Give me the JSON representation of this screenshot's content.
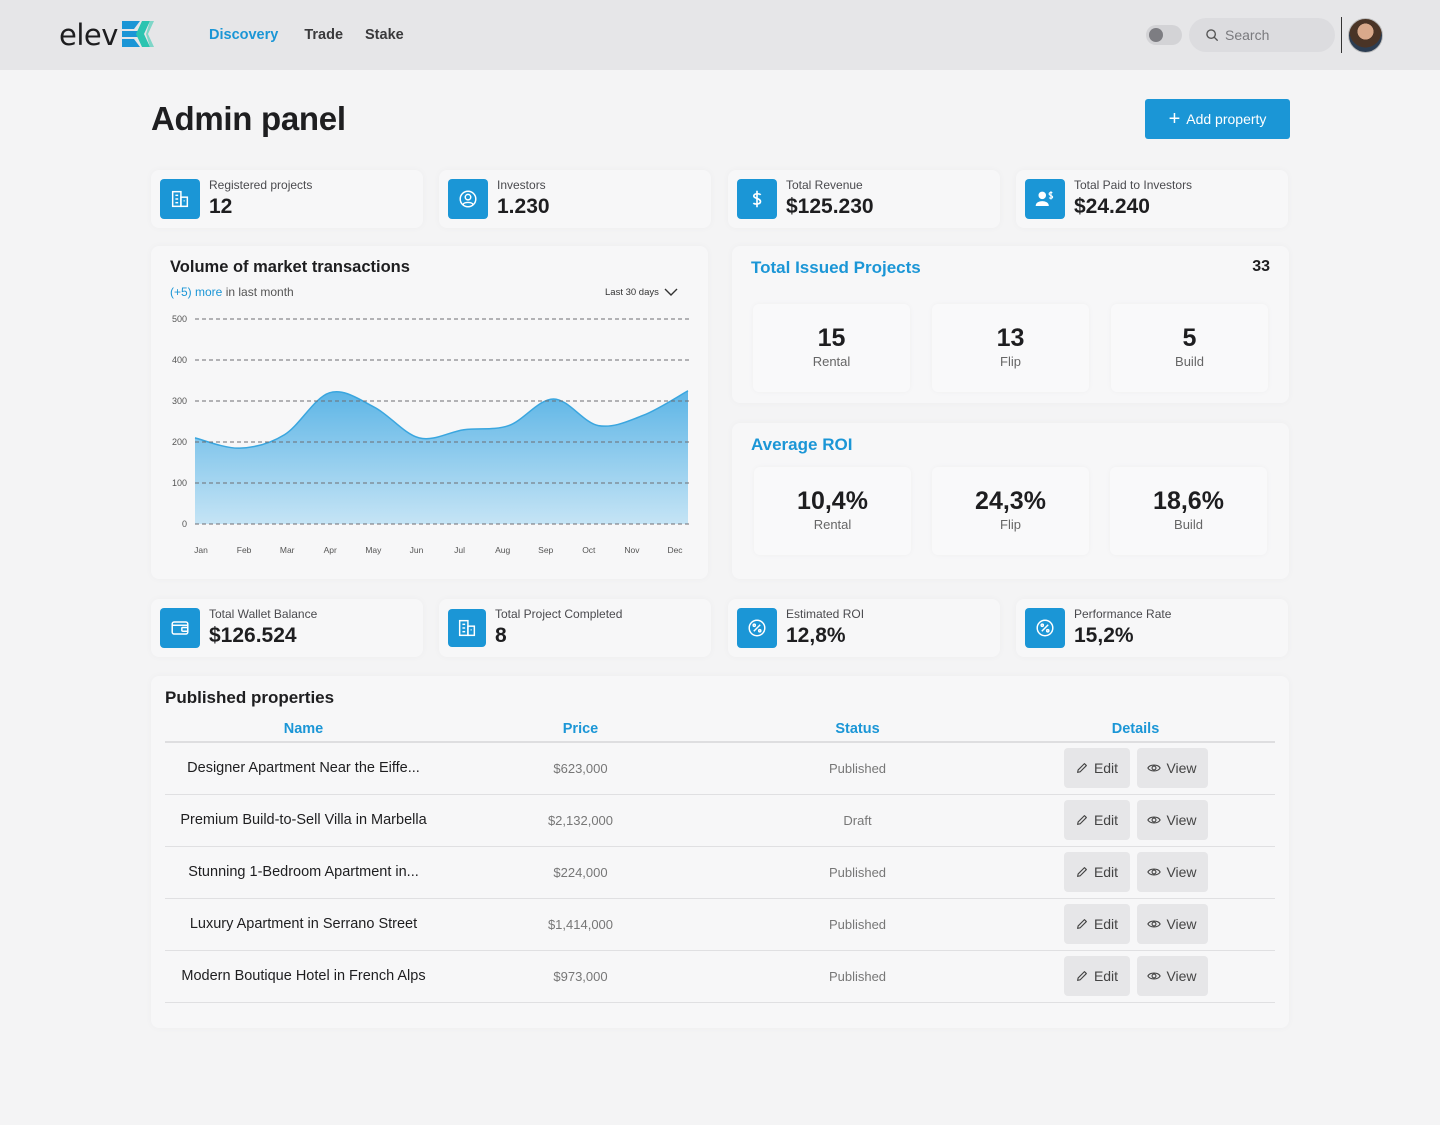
{
  "header": {
    "logo_text": "elev",
    "nav": [
      {
        "label": "Discovery",
        "active": true
      },
      {
        "label": "Trade",
        "active": false
      },
      {
        "label": "Stake",
        "active": false
      }
    ],
    "search_placeholder": "Search"
  },
  "page": {
    "title": "Admin panel",
    "add_button": "Add property"
  },
  "top_stats": [
    {
      "label": "Registered projects",
      "value": "12",
      "icon": "building-icon"
    },
    {
      "label": "Investors",
      "value": "1.230",
      "icon": "user-circle-icon"
    },
    {
      "label": "Total Revenue",
      "value": "$125.230",
      "icon": "dollar-icon"
    },
    {
      "label": "Total Paid to Investors",
      "value": "$24.240",
      "icon": "user-dollar-icon"
    }
  ],
  "transactions": {
    "title": "Volume of market transactions",
    "sub_highlight": "(+5) more",
    "sub_rest": " in last month",
    "range": "Last 30 days"
  },
  "chart_data": {
    "type": "area",
    "title": "Volume of market transactions",
    "categories": [
      "Jan",
      "Feb",
      "Mar",
      "Apr",
      "May",
      "Jun",
      "Jul",
      "Aug",
      "Sep",
      "Oct",
      "Nov",
      "Dec"
    ],
    "values": [
      210,
      185,
      218,
      320,
      285,
      210,
      230,
      240,
      305,
      240,
      265,
      325
    ],
    "ylim": [
      0,
      500
    ],
    "yticks": [
      0,
      100,
      200,
      300,
      400,
      500
    ],
    "grid": true,
    "colors": {
      "fill_top": "#5db5e6",
      "fill_bottom": "#c5e4f5",
      "line": "#3aa6df"
    }
  },
  "issued_projects": {
    "title": "Total Issued Projects",
    "total": "33",
    "items": [
      {
        "value": "15",
        "label": "Rental"
      },
      {
        "value": "13",
        "label": "Flip"
      },
      {
        "value": "5",
        "label": "Build"
      }
    ]
  },
  "average_roi": {
    "title": "Average ROI",
    "items": [
      {
        "value": "10,4%",
        "label": "Rental"
      },
      {
        "value": "24,3%",
        "label": "Flip"
      },
      {
        "value": "18,6%",
        "label": "Build"
      }
    ]
  },
  "bottom_stats": [
    {
      "label": "Total Wallet Balance",
      "value": "$126.524",
      "icon": "wallet-icon"
    },
    {
      "label": "Total Project Completed",
      "value": "8",
      "icon": "building-icon"
    },
    {
      "label": "Estimated ROI",
      "value": "12,8%",
      "icon": "percent-icon"
    },
    {
      "label": "Performance Rate",
      "value": "15,2%",
      "icon": "percent-icon"
    }
  ],
  "properties": {
    "title": "Published properties",
    "columns": [
      "Name",
      "Price",
      "Status",
      "Details"
    ],
    "edit_label": "Edit",
    "view_label": "View",
    "rows": [
      {
        "name": "Designer Apartment Near the Eiffe...",
        "price": "$623,000",
        "status": "Published"
      },
      {
        "name": "Premium Build-to-Sell Villa in Marbella",
        "price": "$2,132,000",
        "status": "Draft"
      },
      {
        "name": "Stunning 1-Bedroom Apartment in...",
        "price": "$224,000",
        "status": "Published"
      },
      {
        "name": "Luxury Apartment in Serrano Street",
        "price": "$1,414,000",
        "status": "Published"
      },
      {
        "name": "Modern Boutique Hotel in French Alps",
        "price": "$973,000",
        "status": "Published"
      }
    ]
  },
  "colors": {
    "accent": "#1b96d6",
    "background": "#f4f4f5"
  }
}
